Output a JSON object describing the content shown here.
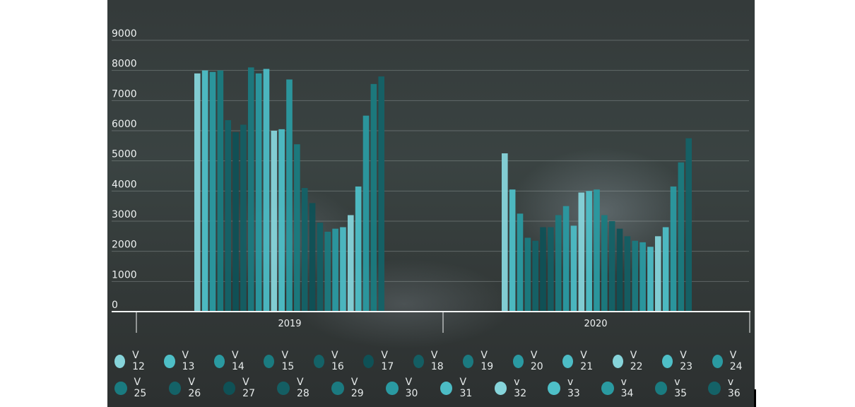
{
  "chart_data": {
    "type": "bar",
    "ylim": [
      0,
      9000
    ],
    "y_ticks": [
      "0",
      "1000",
      "2000",
      "3000",
      "4000",
      "5000",
      "6000",
      "7000",
      "8000",
      "9000"
    ],
    "grid": true,
    "legend_position": "bottom",
    "groups": [
      {
        "label": "2019",
        "values": [
          7900,
          8000,
          7950,
          8000,
          6350,
          5950,
          6200,
          8100,
          7900,
          8050,
          6000,
          6050,
          7700,
          5550,
          4100,
          3600,
          2950,
          2650,
          2750,
          2800,
          3200,
          4150,
          6500,
          7550,
          7800
        ]
      },
      {
        "label": "2020",
        "values": [
          5250,
          4050,
          3250,
          2450,
          2350,
          2800,
          2800,
          3200,
          3500,
          2850,
          3950,
          4000,
          4050,
          3200,
          3000,
          2750,
          2500,
          2350,
          2300,
          2150,
          2500,
          2800,
          4150,
          4950,
          5750
        ]
      }
    ],
    "series": [
      {
        "name": "V 12",
        "color": "#86d4da"
      },
      {
        "name": "V 13",
        "color": "#4ebfc7"
      },
      {
        "name": "V 14",
        "color": "#2a9aa1"
      },
      {
        "name": "V 15",
        "color": "#1a7b80"
      },
      {
        "name": "V 16",
        "color": "#146267"
      },
      {
        "name": "V 17",
        "color": "#0f5156"
      },
      {
        "name": "V 18",
        "color": "#145e63"
      },
      {
        "name": "V 19",
        "color": "#1b7a80"
      },
      {
        "name": "V 20",
        "color": "#2a9aa2"
      },
      {
        "name": "V 21",
        "color": "#4cbcc5"
      },
      {
        "name": "V 22",
        "color": "#86d4da"
      },
      {
        "name": "V 23",
        "color": "#4ebfc7"
      },
      {
        "name": "V 24",
        "color": "#2a9aa1"
      },
      {
        "name": "V 25",
        "color": "#1a7b80"
      },
      {
        "name": "V 26",
        "color": "#146267"
      },
      {
        "name": "V 27",
        "color": "#0f5156"
      },
      {
        "name": "V 28",
        "color": "#145e63"
      },
      {
        "name": "V 29",
        "color": "#1b7a80"
      },
      {
        "name": "V 30",
        "color": "#2a9aa2"
      },
      {
        "name": "V 31",
        "color": "#4cbcc5"
      },
      {
        "name": "v 32",
        "color": "#86d4da"
      },
      {
        "name": "v 33",
        "color": "#4ebfc7"
      },
      {
        "name": "v 34",
        "color": "#2a9aa1"
      },
      {
        "name": "v 35",
        "color": "#1a7b80"
      },
      {
        "name": "v 36",
        "color": "#146267"
      }
    ]
  },
  "legend_rows": [
    13,
    12
  ]
}
